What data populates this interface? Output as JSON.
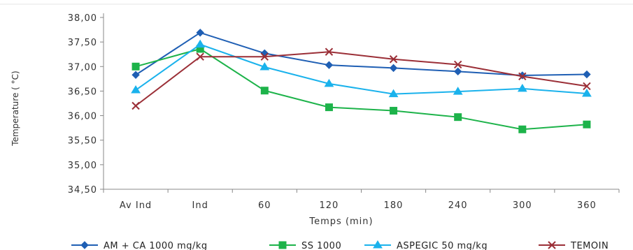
{
  "chart_data": {
    "type": "line",
    "categories": [
      "Av Ind",
      "Ind",
      "60",
      "120",
      "180",
      "240",
      "300",
      "360"
    ],
    "xlabel": "Temps  (min)",
    "ylabel": "Temperature ( °C)",
    "ylim": [
      34.5,
      38.0
    ],
    "yticks": [
      34.5,
      35.0,
      35.5,
      36.0,
      36.5,
      37.0,
      37.5,
      38.0
    ],
    "ytick_labels": [
      "34,50",
      "35,00",
      "35,50",
      "36,00",
      "36,50",
      "37,00",
      "37,50",
      "38,00"
    ],
    "grid": false,
    "legend_position": "bottom",
    "series": [
      {
        "name": "AM + CA 1000 mg/kg",
        "color": "#1f5fb4",
        "marker": "diamond",
        "values": [
          36.83,
          37.69,
          37.27,
          37.03,
          36.97,
          36.9,
          36.82,
          36.84
        ]
      },
      {
        "name": "SS 1000",
        "color": "#1db34a",
        "marker": "square",
        "values": [
          37.0,
          37.36,
          36.51,
          36.17,
          36.1,
          35.97,
          35.72,
          35.82
        ]
      },
      {
        "name": "ASPEGIC 50 mg/kg",
        "color": "#1ab2ec",
        "marker": "triangle",
        "values": [
          36.52,
          37.45,
          36.99,
          36.65,
          36.44,
          36.49,
          36.55,
          36.45
        ]
      },
      {
        "name": "TEMOIN",
        "color": "#9b2f37",
        "marker": "x",
        "values": [
          36.2,
          37.2,
          37.2,
          37.3,
          37.15,
          37.04,
          36.8,
          36.6
        ]
      }
    ]
  }
}
